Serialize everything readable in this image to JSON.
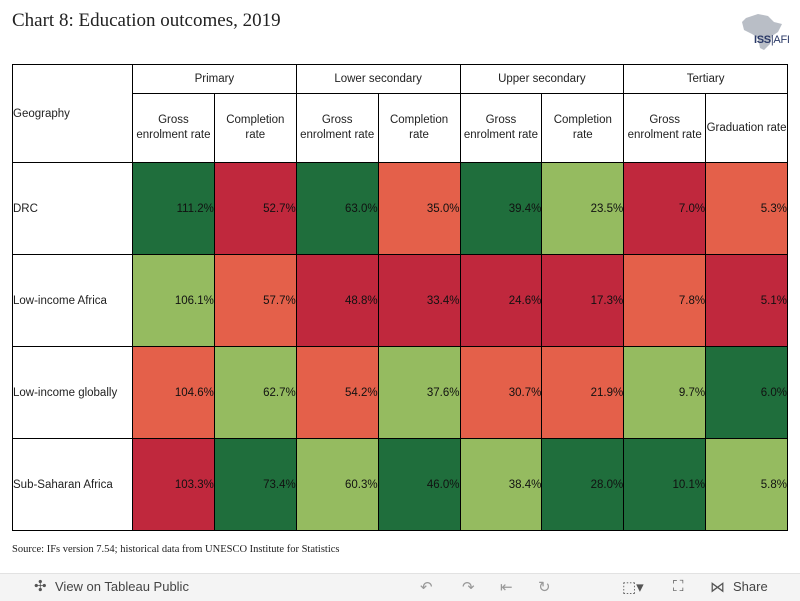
{
  "title": "Chart 8: Education outcomes, 2019",
  "logo": {
    "text": "ISS",
    "sub": "AFI"
  },
  "table": {
    "row_header": "Geography",
    "groups": [
      "Primary",
      "Lower secondary",
      "Upper secondary",
      "Tertiary"
    ],
    "subheaders": [
      "Gross enrolment rate",
      "Completion rate",
      "Gross enrolment rate",
      "Completion rate",
      "Gross enrolment rate",
      "Completion rate",
      "Gross enrolment rate",
      "Graduation rate"
    ],
    "rows": [
      {
        "label": "DRC",
        "cells": [
          {
            "text": "111.2%",
            "color": "#1f6e3c"
          },
          {
            "text": "52.7%",
            "color": "#c0283d"
          },
          {
            "text": "63.0%",
            "color": "#1f6e3c"
          },
          {
            "text": "35.0%",
            "color": "#e4604a"
          },
          {
            "text": "39.4%",
            "color": "#1f6e3c"
          },
          {
            "text": "23.5%",
            "color": "#95bb60"
          },
          {
            "text": "7.0%",
            "color": "#c0283d"
          },
          {
            "text": "5.3%",
            "color": "#e4604a"
          }
        ]
      },
      {
        "label": "Low-income Africa",
        "cells": [
          {
            "text": "106.1%",
            "color": "#95bb60"
          },
          {
            "text": "57.7%",
            "color": "#e4604a"
          },
          {
            "text": "48.8%",
            "color": "#c0283d"
          },
          {
            "text": "33.4%",
            "color": "#c0283d"
          },
          {
            "text": "24.6%",
            "color": "#c0283d"
          },
          {
            "text": "17.3%",
            "color": "#c0283d"
          },
          {
            "text": "7.8%",
            "color": "#e4604a"
          },
          {
            "text": "5.1%",
            "color": "#c0283d"
          }
        ]
      },
      {
        "label": "Low-income globally",
        "cells": [
          {
            "text": "104.6%",
            "color": "#e4604a"
          },
          {
            "text": "62.7%",
            "color": "#95bb60"
          },
          {
            "text": "54.2%",
            "color": "#e4604a"
          },
          {
            "text": "37.6%",
            "color": "#95bb60"
          },
          {
            "text": "30.7%",
            "color": "#e4604a"
          },
          {
            "text": "21.9%",
            "color": "#e4604a"
          },
          {
            "text": "9.7%",
            "color": "#95bb60"
          },
          {
            "text": "6.0%",
            "color": "#1f6e3c"
          }
        ]
      },
      {
        "label": "Sub-Saharan Africa",
        "cells": [
          {
            "text": "103.3%",
            "color": "#c0283d"
          },
          {
            "text": "73.4%",
            "color": "#1f6e3c"
          },
          {
            "text": "60.3%",
            "color": "#95bb60"
          },
          {
            "text": "46.0%",
            "color": "#1f6e3c"
          },
          {
            "text": "38.4%",
            "color": "#95bb60"
          },
          {
            "text": "28.0%",
            "color": "#1f6e3c"
          },
          {
            "text": "10.1%",
            "color": "#1f6e3c"
          },
          {
            "text": "5.8%",
            "color": "#95bb60"
          }
        ]
      }
    ]
  },
  "source": "Source: IFs version 7.54; historical data from UNESCO Institute for Statistics",
  "footer": {
    "view_label": "View on Tableau Public",
    "share_label": "Share"
  },
  "chart_data": {
    "type": "heatmap",
    "title": "Chart 8: Education outcomes, 2019",
    "rows": [
      "DRC",
      "Low-income Africa",
      "Low-income globally",
      "Sub-Saharan Africa"
    ],
    "columns": [
      "Primary - Gross enrolment rate",
      "Primary - Completion rate",
      "Lower secondary - Gross enrolment rate",
      "Lower secondary - Completion rate",
      "Upper secondary - Gross enrolment rate",
      "Upper secondary - Completion rate",
      "Tertiary - Gross enrolment rate",
      "Tertiary - Graduation rate"
    ],
    "values": [
      [
        111.2,
        52.7,
        63.0,
        35.0,
        39.4,
        23.5,
        7.0,
        5.3
      ],
      [
        106.1,
        57.7,
        48.8,
        33.4,
        24.6,
        17.3,
        7.8,
        5.1
      ],
      [
        104.6,
        62.7,
        54.2,
        37.6,
        30.7,
        21.9,
        9.7,
        6.0
      ],
      [
        103.3,
        73.4,
        60.3,
        46.0,
        38.4,
        28.0,
        10.1,
        5.8
      ]
    ],
    "unit": "%"
  }
}
